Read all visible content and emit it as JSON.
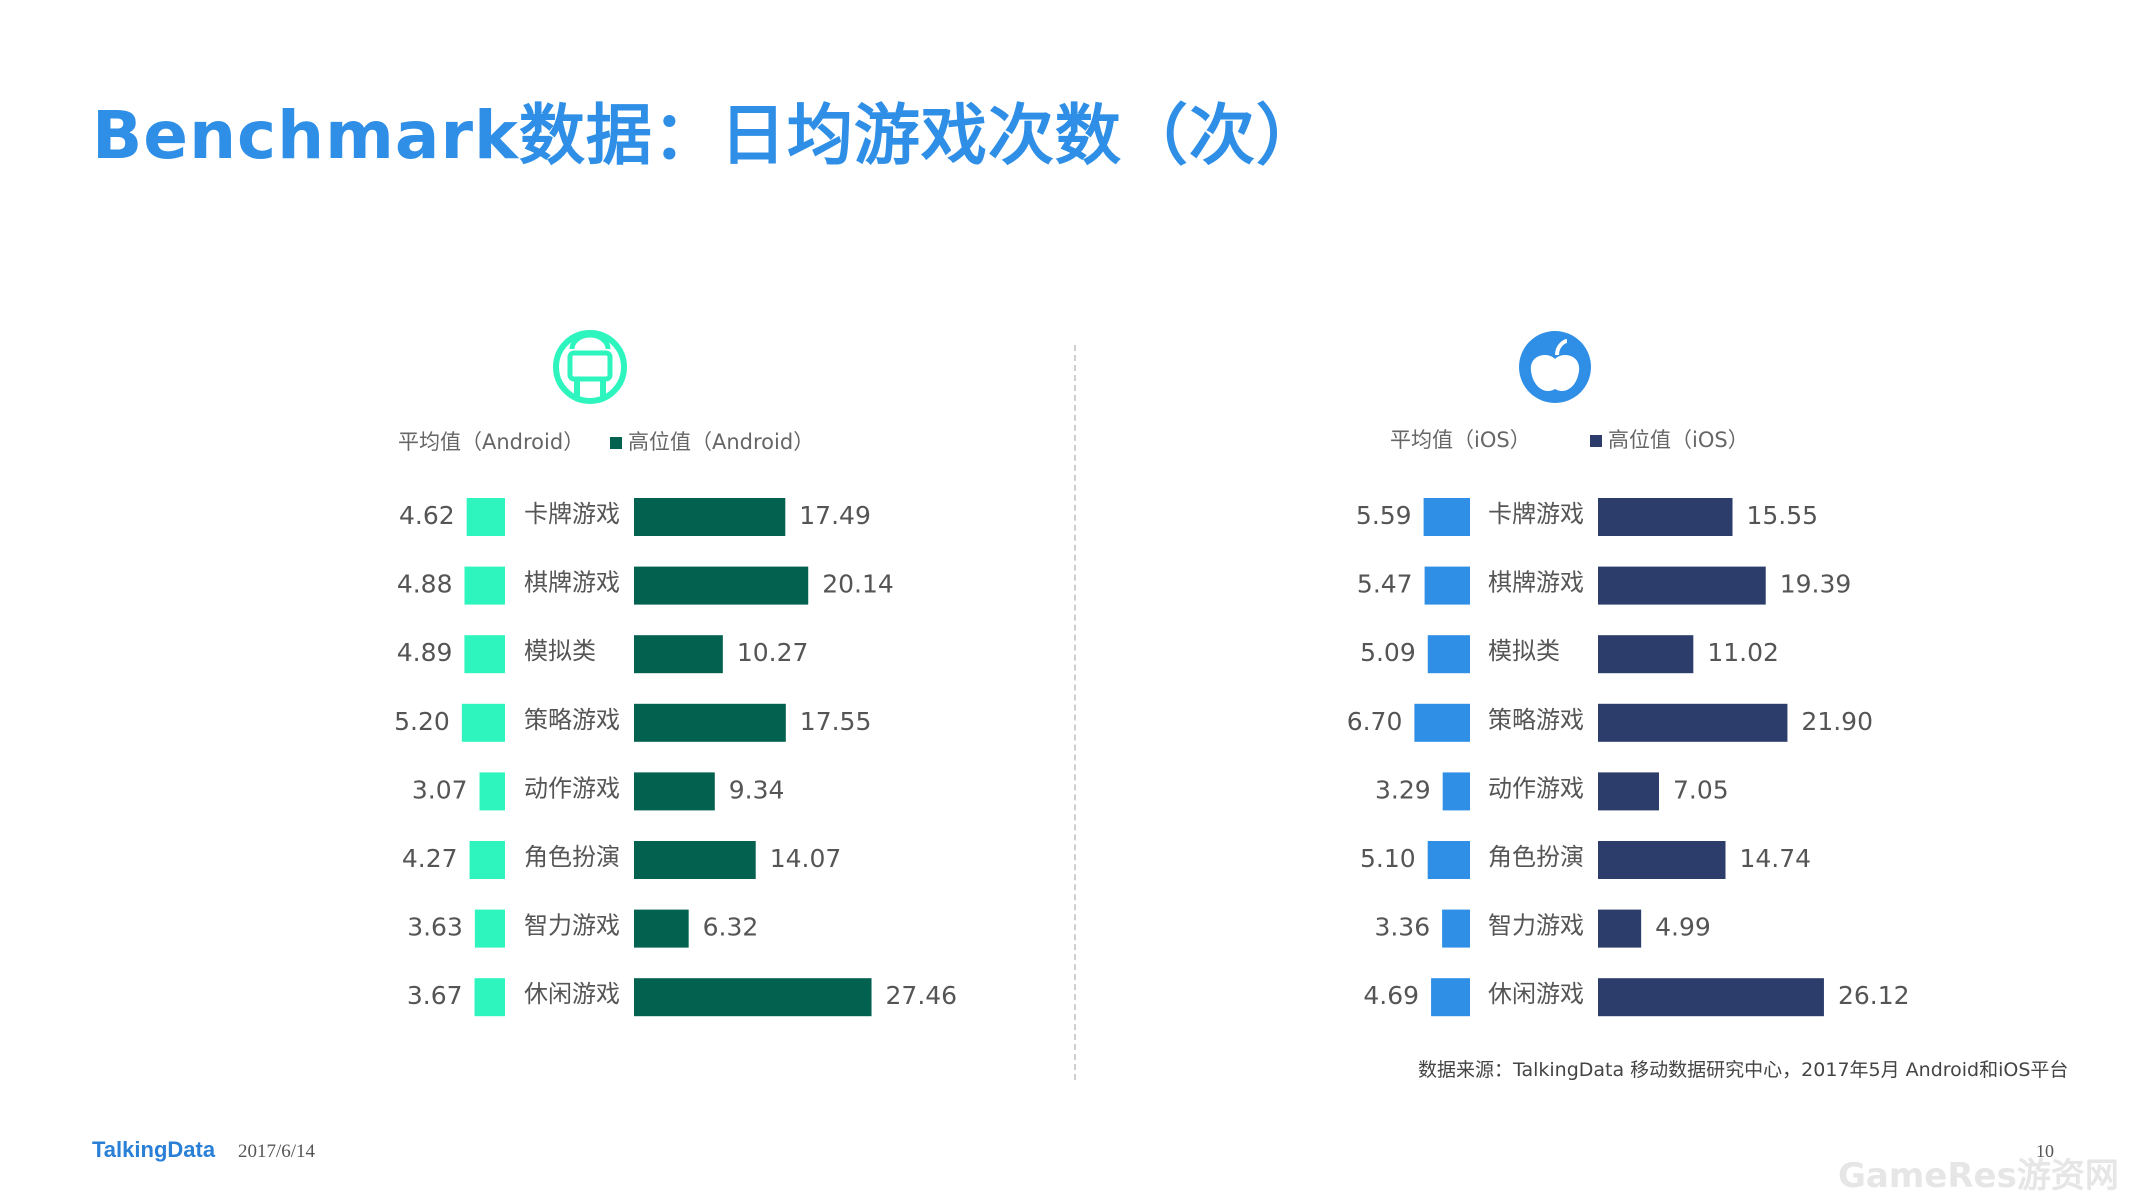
{
  "title": "Benchmark数据：日均游戏次数（次）",
  "colors": {
    "title": "#2f8fe6",
    "android_avg": "#2ef5bd",
    "android_high": "#02614f",
    "ios_avg": "#2f8fe6",
    "ios_high": "#2c3d6b",
    "label": "#555555",
    "value": "#555555"
  },
  "chart_data": [
    {
      "type": "bar",
      "platform": "Android",
      "icon": "android-icon",
      "legend": [
        "平均值（Android）",
        "高位值（Android）"
      ],
      "categories": [
        "卡牌游戏",
        "棋牌游戏",
        "模拟类",
        "策略游戏",
        "动作游戏",
        "角色扮演",
        "智力游戏",
        "休闲游戏"
      ],
      "series": [
        {
          "name": "平均值（Android）",
          "values": [
            4.62,
            4.88,
            4.89,
            5.2,
            3.07,
            4.27,
            3.63,
            3.67
          ],
          "labels": [
            "4.62",
            "4.88",
            "4.89",
            "5.20",
            "3.07",
            "4.27",
            "3.63",
            "3.67"
          ]
        },
        {
          "name": "高位值（Android）",
          "values": [
            17.49,
            20.14,
            10.27,
            17.55,
            9.34,
            14.07,
            6.32,
            27.46
          ],
          "labels": [
            "17.49",
            "20.14",
            "10.27",
            "17.55",
            "9.34",
            "14.07",
            "6.32",
            "27.46"
          ]
        }
      ]
    },
    {
      "type": "bar",
      "platform": "iOS",
      "icon": "apple-icon",
      "legend": [
        "平均值（iOS）",
        "高位值（iOS）"
      ],
      "categories": [
        "卡牌游戏",
        "棋牌游戏",
        "模拟类",
        "策略游戏",
        "动作游戏",
        "角色扮演",
        "智力游戏",
        "休闲游戏"
      ],
      "series": [
        {
          "name": "平均值（iOS）",
          "values": [
            5.59,
            5.47,
            5.09,
            6.7,
            3.29,
            5.1,
            3.36,
            4.69
          ],
          "labels": [
            "5.59",
            "5.47",
            "5.09",
            "6.70",
            "3.29",
            "5.10",
            "3.36",
            "4.69"
          ]
        },
        {
          "name": "高位值（iOS）",
          "values": [
            15.55,
            19.39,
            11.02,
            21.9,
            7.05,
            14.74,
            4.99,
            26.12
          ],
          "labels": [
            "15.55",
            "19.39",
            "11.02",
            "21.90",
            "7.05",
            "14.74",
            "4.99",
            "26.12"
          ]
        }
      ]
    }
  ],
  "source": "数据来源：TalkingData 移动数据研究中心，2017年5月 Android和iOS平台",
  "footer": {
    "logo": "TalkingData",
    "date": "2017/6/14",
    "page": "10"
  },
  "watermark": "GameRes游资网"
}
